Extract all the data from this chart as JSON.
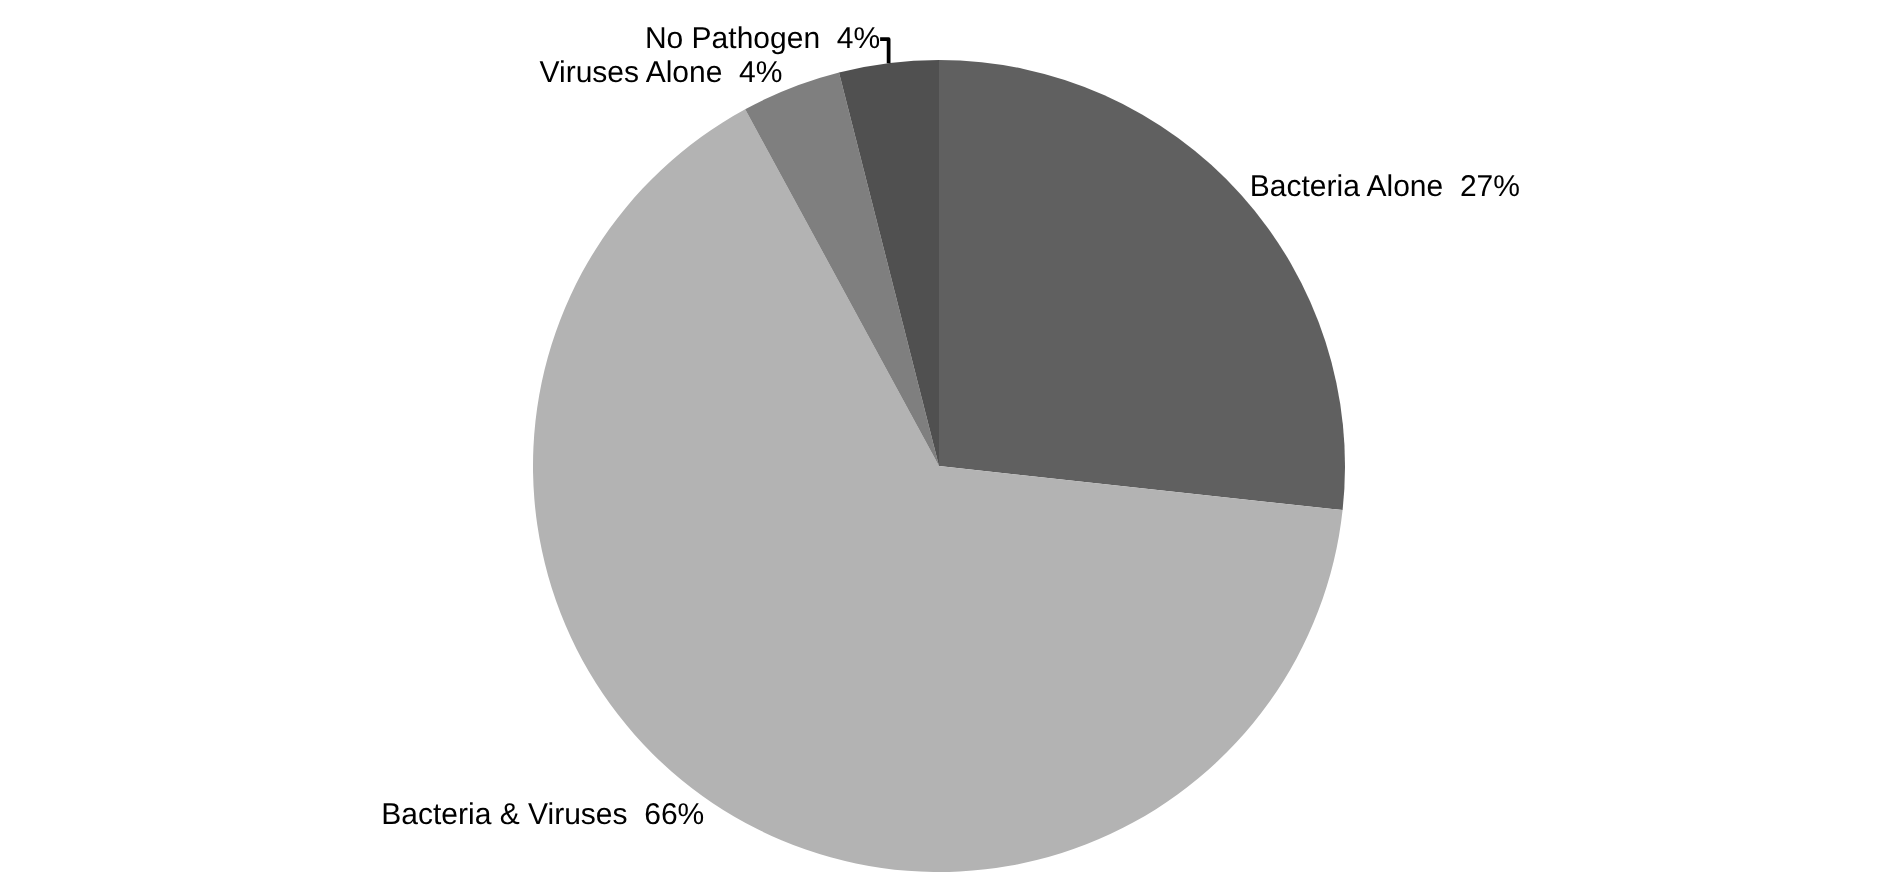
{
  "chart_data": {
    "type": "pie",
    "categories": [
      "Bacteria Alone",
      "Bacteria & Viruses",
      "Viruses Alone",
      "No Pathogen"
    ],
    "values": [
      27,
      66,
      4,
      4
    ],
    "value_labels": [
      "27%",
      "66%",
      "4%",
      "4%"
    ],
    "colors": [
      "#606060",
      "#b3b3b3",
      "#7f7f7f",
      "#505050"
    ],
    "legend": false
  }
}
